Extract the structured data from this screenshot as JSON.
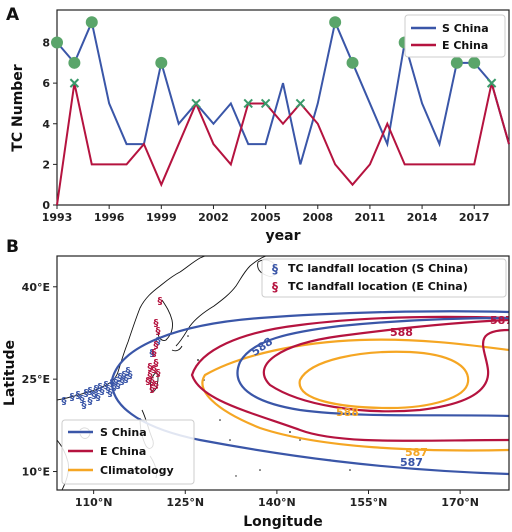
{
  "panel_a": {
    "label": "A",
    "chart_data": {
      "type": "line",
      "xlabel": "year",
      "ylabel": "TC Number",
      "xlim": [
        1993,
        2019
      ],
      "ylim": [
        0,
        9.6
      ],
      "xticks": [
        1993,
        1996,
        1999,
        2002,
        2005,
        2008,
        2011,
        2014,
        2017
      ],
      "yticks": [
        0,
        2,
        4,
        6,
        8
      ],
      "x": [
        1993,
        1994,
        1995,
        1996,
        1997,
        1998,
        1999,
        2000,
        2001,
        2002,
        2003,
        2004,
        2005,
        2006,
        2007,
        2008,
        2009,
        2010,
        2011,
        2012,
        2013,
        2014,
        2015,
        2016,
        2017,
        2018,
        2019
      ],
      "series": [
        {
          "name": "S China",
          "color": "#3a56a8",
          "values": [
            8,
            7,
            9,
            5,
            3,
            3,
            7,
            4,
            5,
            4,
            5,
            3,
            3,
            6,
            2,
            5,
            9,
            7,
            5,
            3,
            8,
            5,
            3,
            7,
            7,
            6,
            3
          ]
        },
        {
          "name": "E China",
          "color": "#b5133f",
          "values": [
            0,
            6,
            2,
            2,
            2,
            3,
            1,
            3,
            5,
            3,
            2,
            5,
            5,
            4,
            5,
            4,
            2,
            1,
            2,
            4,
            2,
            2,
            2,
            2,
            2,
            6,
            3
          ]
        }
      ],
      "markers": {
        "circles_on_s_china": [
          1993,
          1994,
          1995,
          1999,
          2009,
          2010,
          2013,
          2016,
          2017
        ],
        "circle_color": "#5aa56a",
        "crosses_on_e_china": [
          1994,
          2001,
          2004,
          2005,
          2007,
          2018
        ],
        "cross_color": "#3a9a6a"
      },
      "legend_position": "top-right"
    }
  },
  "panel_b": {
    "label": "B",
    "chart_data": {
      "type": "map",
      "xlabel": "Longitude",
      "ylabel": "Latitude",
      "xlim": [
        104,
        178
      ],
      "ylim": [
        7,
        45
      ],
      "xticks": [
        110,
        125,
        140,
        155,
        170
      ],
      "xtick_labels": [
        "110°N",
        "125°N",
        "140°N",
        "155°N",
        "170°N"
      ],
      "yticks": [
        10,
        25,
        40
      ],
      "ytick_labels": [
        "10°E",
        "25°E",
        "40°E"
      ],
      "legend_top": [
        {
          "label": "TC landfall location (S China)",
          "marker": "typhoon-symbol",
          "color": "#3a56a8"
        },
        {
          "label": "TC landfall location (E China)",
          "marker": "typhoon-symbol",
          "color": "#b5133f"
        }
      ],
      "legend_bottom": [
        {
          "label": "S China",
          "color": "#3a56a8"
        },
        {
          "label": "E China",
          "color": "#b5133f"
        },
        {
          "label": "Climatology",
          "color": "#f5a623"
        }
      ],
      "contour_labels": [
        {
          "text": "587",
          "color": "#b5133f"
        },
        {
          "text": "588",
          "color": "#b5133f"
        },
        {
          "text": "588",
          "color": "#3a56a8"
        },
        {
          "text": "588",
          "color": "#f5a623"
        },
        {
          "text": "587",
          "color": "#f5a623"
        },
        {
          "text": "587",
          "color": "#3a56a8"
        }
      ]
    }
  },
  "colors": {
    "s_china": "#3a56a8",
    "e_china": "#b5133f",
    "climatology": "#f5a623",
    "marker_green": "#5aa56a"
  }
}
